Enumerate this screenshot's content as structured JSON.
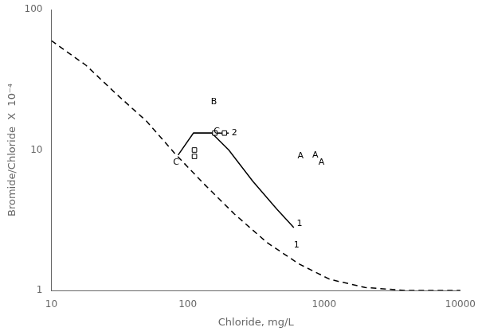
{
  "chart_data": {
    "type": "line",
    "log": true,
    "grid": false,
    "xlabel": "Chloride, mg/L",
    "ylabel": "Bromide/Chloride  X  10⁻⁴",
    "xlim": [
      10,
      10000
    ],
    "ylim": [
      1,
      100
    ],
    "xticks": [
      10,
      100,
      1000,
      10000
    ],
    "yticks": [
      1,
      10,
      100
    ],
    "series": [
      {
        "type": "line",
        "line_style": "dashed",
        "marker": "none",
        "color": "#000000",
        "x": [
          10,
          18,
          30,
          50,
          80,
          130,
          220,
          380,
          650,
          1100,
          2000,
          4000,
          10000
        ],
        "values": [
          60,
          40,
          25,
          16,
          9.5,
          5.8,
          3.5,
          2.2,
          1.55,
          1.2,
          1.05,
          1.0,
          1.0
        ]
      },
      {
        "type": "line",
        "line_style": "solid",
        "marker": "none",
        "color": "#000000",
        "x": [
          85,
          110,
          110,
          200
        ],
        "values": [
          9.2,
          13.2,
          13.2,
          13.2
        ]
      },
      {
        "type": "line",
        "line_style": "solid",
        "marker": "none",
        "color": "#000000",
        "x": [
          110,
          150,
          200,
          300,
          450,
          600
        ],
        "values": [
          13.2,
          13.2,
          10.0,
          6.0,
          3.8,
          2.8
        ]
      },
      {
        "type": "scatter",
        "marker": "square",
        "color": "#000000",
        "x": [
          158,
          186,
          112,
          112
        ],
        "values": [
          13.2,
          13.2,
          10.0,
          9.0
        ]
      }
    ],
    "annotations": [
      {
        "text": "B",
        "x": 148,
        "y": 22
      },
      {
        "text": "C",
        "x": 78,
        "y": 8.2
      },
      {
        "text": "C",
        "x": 155,
        "y": 13.5
      },
      {
        "text": "2",
        "x": 210,
        "y": 13.2
      },
      {
        "text": "1",
        "x": 630,
        "y": 3.0
      },
      {
        "text": "1",
        "x": 600,
        "y": 2.1
      },
      {
        "text": "A",
        "x": 640,
        "y": 9.0
      },
      {
        "text": "A",
        "x": 820,
        "y": 9.2
      },
      {
        "text": "A",
        "x": 910,
        "y": 8.2
      }
    ]
  }
}
